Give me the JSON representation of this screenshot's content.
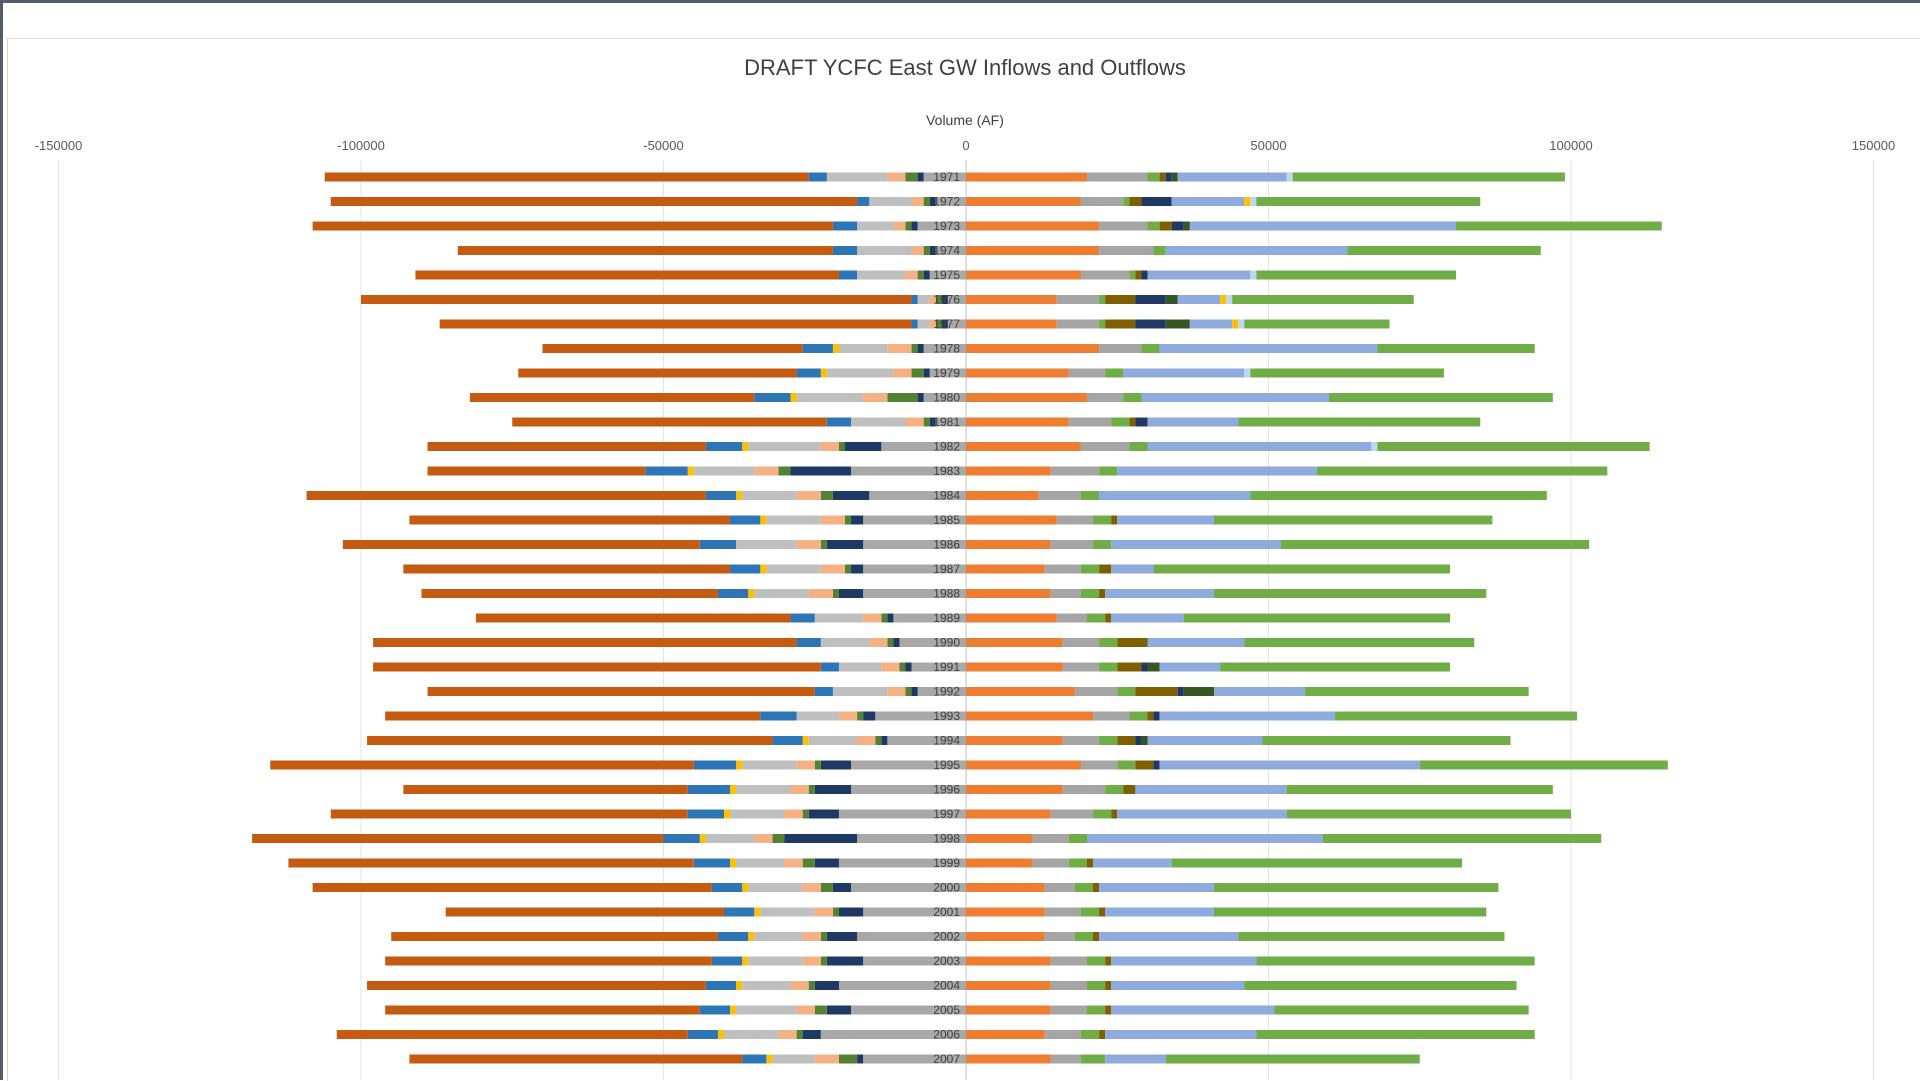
{
  "chart_data": {
    "type": "bar",
    "orientation": "horizontal",
    "stacked": true,
    "title": "DRAFT YCFC East GW Inflows and Outflows",
    "xlabel": "Volume (AF)",
    "ylabel": "",
    "xlim": [
      -150000,
      150000
    ],
    "xticks": [
      -150000,
      -100000,
      -50000,
      0,
      50000,
      100000,
      150000
    ],
    "xtick_labels": [
      "-150000",
      "-100000",
      "-50000",
      "0",
      "50000",
      "100000",
      "150000"
    ],
    "legend": "none",
    "grid": "vertical",
    "categories": [
      "1971",
      "1972",
      "1973",
      "1974",
      "1975",
      "1976",
      "1977",
      "1978",
      "1979",
      "1980",
      "1981",
      "1982",
      "1983",
      "1984",
      "1985",
      "1986",
      "1987",
      "1988",
      "1989",
      "1990",
      "1991",
      "1992",
      "1993",
      "1994",
      "1995",
      "1996",
      "1997",
      "1998",
      "1999",
      "2000",
      "2001",
      "2002",
      "2003",
      "2004",
      "2005",
      "2006",
      "2007"
    ],
    "series": [
      {
        "color": "#a8a8a8",
        "values": [
          -7000,
          -5000,
          -8000,
          -5000,
          -6000,
          -3000,
          -3000,
          -7000,
          -6000,
          -7000,
          -5000,
          -14000,
          -19000,
          -16000,
          -17000,
          -17000,
          -17000,
          -17000,
          -12000,
          -11000,
          -9000,
          -8000,
          -15000,
          -13000,
          -19000,
          -19000,
          -21000,
          -18000,
          -21000,
          -19000,
          -17000,
          -18000,
          -17000,
          -21000,
          -19000,
          -24000,
          -17000
        ]
      },
      {
        "color": "#1f3864",
        "values": [
          -1000,
          -1000,
          -1000,
          -1000,
          -1000,
          -1000,
          -1000,
          -1000,
          -1000,
          -1000,
          -1000,
          -6000,
          -10000,
          -6000,
          -2000,
          -6000,
          -2000,
          -4000,
          -1000,
          -1000,
          -1000,
          -1000,
          -2000,
          -1000,
          -5000,
          -6000,
          -5000,
          -12000,
          -4000,
          -3000,
          -4000,
          -5000,
          -6000,
          -4000,
          -4000,
          -3000,
          -1000
        ]
      },
      {
        "color": "#548235",
        "values": [
          -2000,
          -1000,
          -1000,
          -1000,
          -1000,
          -1000,
          -1000,
          -1000,
          -2000,
          -5000,
          -1000,
          -1000,
          -2000,
          -2000,
          -1000,
          -1000,
          -1000,
          -1000,
          -1000,
          -1000,
          -1000,
          -1000,
          -1000,
          -1000,
          -1000,
          -1000,
          -1000,
          -2000,
          -2000,
          -2000,
          -1000,
          -1000,
          -1000,
          -1000,
          -2000,
          -1000,
          -3000
        ]
      },
      {
        "color": "#f4b183",
        "values": [
          -3000,
          -2000,
          -2000,
          -2000,
          -2000,
          -1000,
          -1000,
          -4000,
          -3000,
          -4000,
          -3000,
          -3000,
          -4000,
          -4000,
          -4000,
          -4000,
          -4000,
          -4000,
          -3000,
          -3000,
          -3000,
          -3000,
          -3000,
          -3000,
          -3000,
          -3000,
          -3000,
          -3000,
          -3000,
          -3000,
          -3000,
          -3000,
          -3000,
          -3000,
          -3000,
          -3000,
          -4000
        ]
      },
      {
        "color": "#bfbfbf",
        "values": [
          -10000,
          -7000,
          -6000,
          -9000,
          -8000,
          -2000,
          -2000,
          -8000,
          -11000,
          -11000,
          -9000,
          -12000,
          -10000,
          -9000,
          -9000,
          -10000,
          -9000,
          -9000,
          -8000,
          -8000,
          -7000,
          -9000,
          -7000,
          -8000,
          -9000,
          -9000,
          -9000,
          -8000,
          -8000,
          -9000,
          -9000,
          -8000,
          -9000,
          -8000,
          -10000,
          -9000,
          -7000
        ]
      },
      {
        "color": "#ffc000",
        "values": [
          0,
          0,
          0,
          0,
          0,
          0,
          0,
          -1000,
          -1000,
          -1000,
          0,
          -1000,
          -1000,
          -1000,
          -1000,
          0,
          -1000,
          -1000,
          0,
          0,
          0,
          0,
          0,
          -1000,
          -1000,
          -1000,
          -1000,
          -1000,
          -1000,
          -1000,
          -1000,
          -1000,
          -1000,
          -1000,
          -1000,
          -1000,
          -1000
        ]
      },
      {
        "color": "#2e75b6",
        "values": [
          -3000,
          -2000,
          -4000,
          -4000,
          -3000,
          -1000,
          -1000,
          -5000,
          -4000,
          -6000,
          -4000,
          -6000,
          -7000,
          -5000,
          -5000,
          -6000,
          -5000,
          -5000,
          -4000,
          -4000,
          -3000,
          -3000,
          -6000,
          -5000,
          -7000,
          -7000,
          -6000,
          -6000,
          -6000,
          -5000,
          -5000,
          -5000,
          -5000,
          -5000,
          -5000,
          -5000,
          -4000
        ]
      },
      {
        "color": "#c55a11",
        "values": [
          -80000,
          -87000,
          -86000,
          -62000,
          -70000,
          -91000,
          -78000,
          -43000,
          -46000,
          -47000,
          -52000,
          -46000,
          -36000,
          -66000,
          -53000,
          -59000,
          -54000,
          -49000,
          -52000,
          -70000,
          -74000,
          -64000,
          -62000,
          -67000,
          -70000,
          -47000,
          -59000,
          -68000,
          -67000,
          -66000,
          -46000,
          -54000,
          -54000,
          -56000,
          -52000,
          -58000,
          -55000
        ]
      },
      {
        "color": "#ed7d31",
        "values": [
          20000,
          19000,
          22000,
          22000,
          19000,
          15000,
          15000,
          22000,
          17000,
          20000,
          17000,
          19000,
          14000,
          12000,
          15000,
          14000,
          13000,
          14000,
          15000,
          16000,
          16000,
          18000,
          21000,
          16000,
          19000,
          16000,
          14000,
          11000,
          11000,
          13000,
          13000,
          13000,
          14000,
          14000,
          14000,
          13000,
          14000
        ]
      },
      {
        "color": "#a5a5a5",
        "values": [
          10000,
          7000,
          8000,
          9000,
          8000,
          7000,
          7000,
          7000,
          6000,
          6000,
          7000,
          8000,
          8000,
          7000,
          6000,
          7000,
          6000,
          5000,
          5000,
          6000,
          6000,
          7000,
          6000,
          6000,
          6000,
          7000,
          7000,
          6000,
          6000,
          5000,
          6000,
          5000,
          6000,
          6000,
          6000,
          6000,
          5000
        ]
      },
      {
        "color": "#70ad47",
        "values": [
          2000,
          1000,
          2000,
          2000,
          1000,
          1000,
          1000,
          3000,
          3000,
          3000,
          3000,
          3000,
          3000,
          3000,
          3000,
          3000,
          3000,
          3000,
          3000,
          3000,
          3000,
          3000,
          3000,
          3000,
          3000,
          3000,
          3000,
          3000,
          3000,
          3000,
          3000,
          3000,
          3000,
          3000,
          3000,
          3000,
          4000
        ]
      },
      {
        "color": "#7f6000",
        "values": [
          1000,
          2000,
          2000,
          0,
          1000,
          5000,
          5000,
          0,
          0,
          0,
          1000,
          0,
          0,
          0,
          1000,
          0,
          2000,
          1000,
          1000,
          5000,
          4000,
          7000,
          1000,
          3000,
          3000,
          2000,
          1000,
          0,
          1000,
          1000,
          1000,
          1000,
          1000,
          1000,
          1000,
          1000,
          0
        ]
      },
      {
        "color": "#1f3864",
        "values": [
          1000,
          5000,
          2000,
          0,
          1000,
          5000,
          5000,
          0,
          0,
          0,
          2000,
          0,
          0,
          0,
          0,
          0,
          0,
          0,
          0,
          0,
          1000,
          1000,
          1000,
          1000,
          1000,
          0,
          0,
          0,
          0,
          0,
          0,
          0,
          0,
          0,
          0,
          0,
          0
        ]
      },
      {
        "color": "#375623",
        "values": [
          1000,
          0,
          1000,
          0,
          0,
          2000,
          4000,
          0,
          0,
          0,
          0,
          0,
          0,
          0,
          0,
          0,
          0,
          0,
          0,
          0,
          2000,
          5000,
          0,
          1000,
          0,
          0,
          0,
          0,
          0,
          0,
          0,
          0,
          0,
          0,
          0,
          0,
          0
        ]
      },
      {
        "color": "#8faadc",
        "values": [
          18000,
          12000,
          44000,
          30000,
          17000,
          7000,
          7000,
          36000,
          20000,
          31000,
          15000,
          37000,
          33000,
          25000,
          16000,
          28000,
          7000,
          18000,
          12000,
          16000,
          10000,
          15000,
          29000,
          19000,
          43000,
          25000,
          28000,
          39000,
          13000,
          19000,
          18000,
          23000,
          24000,
          22000,
          27000,
          25000,
          10000
        ]
      },
      {
        "color": "#ffc000",
        "values": [
          0,
          1000,
          0,
          0,
          0,
          1000,
          1000,
          0,
          0,
          0,
          0,
          0,
          0,
          0,
          0,
          0,
          0,
          0,
          0,
          0,
          0,
          0,
          0,
          0,
          0,
          0,
          0,
          0,
          0,
          0,
          0,
          0,
          0,
          0,
          0,
          0,
          0
        ]
      },
      {
        "color": "#bdd7ee",
        "values": [
          1000,
          1000,
          0,
          0,
          1000,
          1000,
          1000,
          0,
          1000,
          0,
          0,
          1000,
          0,
          0,
          0,
          0,
          0,
          0,
          0,
          0,
          0,
          0,
          0,
          0,
          0,
          0,
          0,
          0,
          0,
          0,
          0,
          0,
          0,
          0,
          0,
          0,
          0
        ]
      },
      {
        "color": "#70ad47",
        "values": [
          45000,
          37000,
          34000,
          32000,
          33000,
          30000,
          24000,
          26000,
          32000,
          37000,
          40000,
          45000,
          48000,
          49000,
          46000,
          51000,
          49000,
          45000,
          44000,
          38000,
          38000,
          37000,
          40000,
          41000,
          41000,
          44000,
          47000,
          46000,
          48000,
          47000,
          45000,
          44000,
          46000,
          45000,
          42000,
          46000,
          42000
        ]
      }
    ]
  }
}
